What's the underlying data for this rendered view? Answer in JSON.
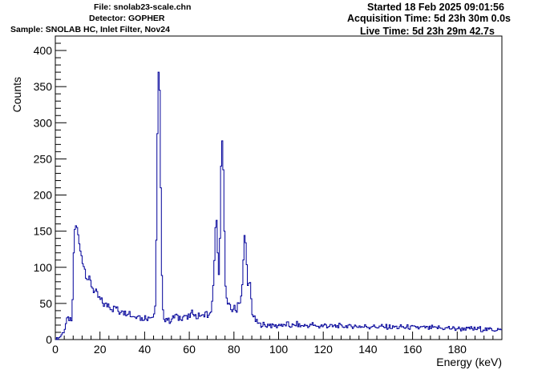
{
  "header": {
    "file": "File: snolab23-scale.chn",
    "detector": "Detector: GOPHER",
    "sample": "Sample: SNOLAB HC, Inlet Filter, Nov24",
    "started": "Started 18 Feb 2025 09:01:56",
    "acquisition": "Acquisition Time: 5d 23h 30m 0.0s",
    "live": "Live Time: 5d 23h 29m 42.7s"
  },
  "colors": {
    "line": "#000099",
    "axis": "#000000",
    "background": "#ffffff"
  },
  "chart_data": {
    "type": "line",
    "style": "step-histogram",
    "title": "",
    "xlabel": "Energy (keV)",
    "ylabel": "Counts",
    "xlim": [
      0,
      200
    ],
    "ylim": [
      0,
      420
    ],
    "x_ticks": [
      0,
      20,
      40,
      60,
      80,
      100,
      120,
      140,
      160,
      180
    ],
    "y_ticks": [
      0,
      50,
      100,
      150,
      200,
      250,
      300,
      350,
      400
    ],
    "grid": false,
    "legend": "none",
    "series": [
      {
        "bin_width_keV": 0.5,
        "points": [
          [
            0,
            0
          ],
          [
            2,
            3
          ],
          [
            3,
            8
          ],
          [
            4,
            12
          ],
          [
            5,
            25
          ],
          [
            6,
            30
          ],
          [
            7,
            25
          ],
          [
            7.5,
            22
          ],
          [
            8,
            90
          ],
          [
            8.5,
            150
          ],
          [
            9,
            155
          ],
          [
            9.5,
            160
          ],
          [
            10,
            150
          ],
          [
            10.5,
            140
          ],
          [
            11,
            125
          ],
          [
            12,
            115
          ],
          [
            13,
            100
          ],
          [
            14,
            90
          ],
          [
            15,
            82
          ],
          [
            16,
            78
          ],
          [
            17,
            70
          ],
          [
            18,
            65
          ],
          [
            19,
            60
          ],
          [
            20,
            55
          ],
          [
            21,
            52
          ],
          [
            22,
            48
          ],
          [
            23,
            47
          ],
          [
            24,
            50
          ],
          [
            25,
            44
          ],
          [
            26,
            42
          ],
          [
            27,
            46
          ],
          [
            28,
            40
          ],
          [
            29,
            37
          ],
          [
            30,
            45
          ],
          [
            31,
            36
          ],
          [
            32,
            38
          ],
          [
            33,
            40
          ],
          [
            34,
            32
          ],
          [
            35,
            34
          ],
          [
            36,
            30
          ],
          [
            37,
            38
          ],
          [
            38,
            30
          ],
          [
            39,
            28
          ],
          [
            40,
            32
          ],
          [
            41,
            28
          ],
          [
            42,
            35
          ],
          [
            43,
            30
          ],
          [
            44,
            33
          ],
          [
            45,
            45
          ],
          [
            45.5,
            230
          ],
          [
            46,
            340
          ],
          [
            46.5,
            400
          ],
          [
            47,
            290
          ],
          [
            47.5,
            130
          ],
          [
            48,
            40
          ],
          [
            49,
            28
          ],
          [
            50,
            30
          ],
          [
            51,
            25
          ],
          [
            52,
            28
          ],
          [
            53,
            30
          ],
          [
            54,
            35
          ],
          [
            55,
            28
          ],
          [
            56,
            32
          ],
          [
            57,
            30
          ],
          [
            58,
            35
          ],
          [
            59,
            28
          ],
          [
            60,
            32
          ],
          [
            61,
            35
          ],
          [
            62,
            40
          ],
          [
            63,
            30
          ],
          [
            64,
            32
          ],
          [
            65,
            35
          ],
          [
            66,
            30
          ],
          [
            67,
            38
          ],
          [
            68,
            35
          ],
          [
            69,
            30
          ],
          [
            70,
            45
          ],
          [
            71,
            80
          ],
          [
            71.5,
            130
          ],
          [
            72,
            180
          ],
          [
            72.5,
            150
          ],
          [
            73,
            90
          ],
          [
            73.5,
            80
          ],
          [
            74,
            200
          ],
          [
            74.5,
            280
          ],
          [
            75,
            270
          ],
          [
            75.5,
            200
          ],
          [
            76,
            100
          ],
          [
            76.5,
            60
          ],
          [
            77,
            50
          ],
          [
            78,
            45
          ],
          [
            79,
            40
          ],
          [
            80,
            45
          ],
          [
            81,
            38
          ],
          [
            82,
            55
          ],
          [
            83,
            50
          ],
          [
            84,
            80
          ],
          [
            84.5,
            140
          ],
          [
            85,
            148
          ],
          [
            85.5,
            120
          ],
          [
            86,
            80
          ],
          [
            86.5,
            60
          ],
          [
            87,
            88
          ],
          [
            87.5,
            70
          ],
          [
            88,
            40
          ],
          [
            89,
            30
          ],
          [
            90,
            25
          ],
          [
            91,
            22
          ],
          [
            92,
            20
          ],
          [
            93,
            22
          ],
          [
            94,
            18
          ],
          [
            95,
            20
          ],
          [
            96,
            22
          ],
          [
            97,
            18
          ],
          [
            98,
            20
          ],
          [
            99,
            18
          ],
          [
            100,
            20
          ],
          [
            101,
            22
          ],
          [
            102,
            18
          ],
          [
            103,
            20
          ],
          [
            104,
            22
          ],
          [
            105,
            18
          ],
          [
            106,
            20
          ],
          [
            107,
            18
          ],
          [
            108,
            22
          ],
          [
            109,
            20
          ],
          [
            110,
            18
          ],
          [
            111,
            20
          ],
          [
            112,
            19
          ],
          [
            113,
            20
          ],
          [
            114,
            18
          ],
          [
            115,
            22
          ],
          [
            116,
            18
          ],
          [
            117,
            20
          ],
          [
            118,
            17
          ],
          [
            119,
            20
          ],
          [
            120,
            18
          ],
          [
            121,
            21
          ],
          [
            122,
            18
          ],
          [
            123,
            20
          ],
          [
            124,
            17
          ],
          [
            125,
            19
          ],
          [
            126,
            18
          ],
          [
            127,
            20
          ],
          [
            128,
            17
          ],
          [
            129,
            19
          ],
          [
            130,
            18
          ],
          [
            131,
            20
          ],
          [
            132,
            17
          ],
          [
            133,
            18
          ],
          [
            134,
            20
          ],
          [
            135,
            17
          ],
          [
            136,
            19
          ],
          [
            137,
            18
          ],
          [
            138,
            17
          ],
          [
            139,
            19
          ],
          [
            140,
            18
          ],
          [
            141,
            17
          ],
          [
            142,
            20
          ],
          [
            143,
            17
          ],
          [
            144,
            18
          ],
          [
            145,
            17
          ],
          [
            146,
            19
          ],
          [
            147,
            16
          ],
          [
            148,
            18
          ],
          [
            149,
            17
          ],
          [
            150,
            18
          ],
          [
            151,
            16
          ],
          [
            152,
            18
          ],
          [
            153,
            17
          ],
          [
            154,
            16
          ],
          [
            155,
            18
          ],
          [
            156,
            17
          ],
          [
            157,
            16
          ],
          [
            158,
            18
          ],
          [
            159,
            16
          ],
          [
            160,
            17
          ],
          [
            161,
            16
          ],
          [
            162,
            18
          ],
          [
            163,
            15
          ],
          [
            164,
            17
          ],
          [
            165,
            16
          ],
          [
            166,
            17
          ],
          [
            167,
            15
          ],
          [
            168,
            16
          ],
          [
            169,
            17
          ],
          [
            170,
            15
          ],
          [
            171,
            16
          ],
          [
            172,
            17
          ],
          [
            173,
            15
          ],
          [
            174,
            16
          ],
          [
            175,
            15
          ],
          [
            176,
            17
          ],
          [
            177,
            15
          ],
          [
            178,
            16
          ],
          [
            179,
            14
          ],
          [
            180,
            16
          ],
          [
            181,
            15
          ],
          [
            182,
            14
          ],
          [
            183,
            16
          ],
          [
            184,
            15
          ],
          [
            185,
            14
          ],
          [
            186,
            16
          ],
          [
            187,
            14
          ],
          [
            188,
            15
          ],
          [
            189,
            14
          ],
          [
            190,
            16
          ],
          [
            191,
            13
          ],
          [
            192,
            15
          ],
          [
            193,
            14
          ],
          [
            194,
            13
          ],
          [
            195,
            15
          ],
          [
            196,
            14
          ],
          [
            197,
            13
          ],
          [
            198,
            15
          ],
          [
            199,
            13
          ],
          [
            200,
            12
          ]
        ]
      }
    ]
  }
}
